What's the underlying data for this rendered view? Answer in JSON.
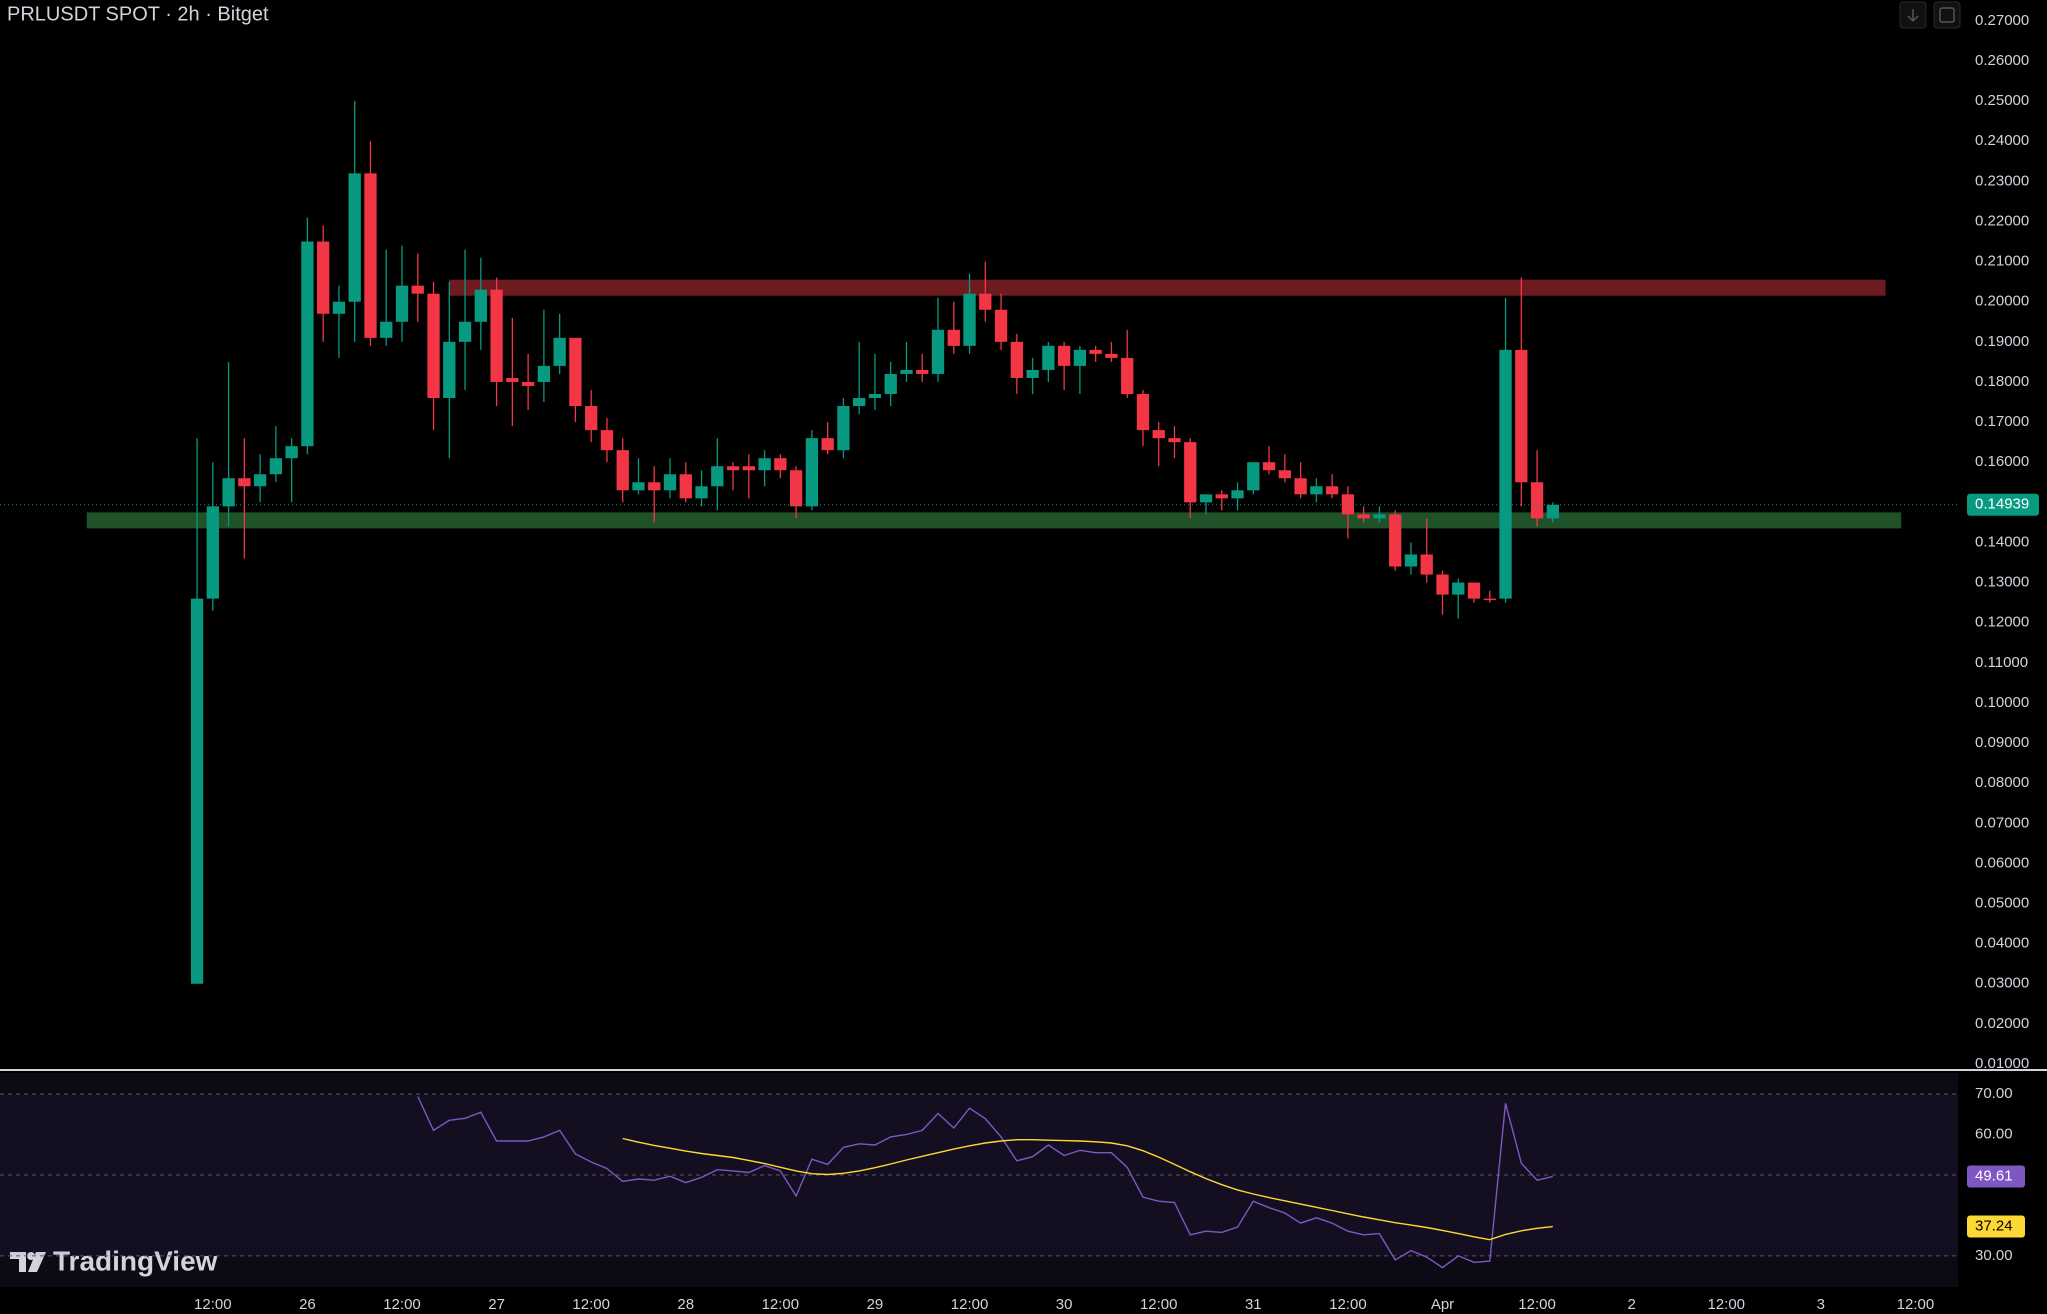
{
  "chart_data": [
    {
      "type": "candlestick",
      "title": "PRLUSDT SPOT · 2h · Bitget",
      "open": [
        0.03,
        0.126,
        0.149,
        0.156,
        0.154,
        0.157,
        0.161,
        0.164,
        0.215,
        0.197,
        0.2,
        0.232,
        0.191,
        0.195,
        0.204,
        0.202,
        0.176,
        0.19,
        0.195,
        0.203,
        0.181,
        0.18,
        0.18,
        0.184,
        0.191,
        0.174,
        0.168,
        0.163,
        0.153,
        0.155,
        0.153,
        0.157,
        0.151,
        0.154,
        0.159,
        0.159,
        0.158,
        0.161,
        0.158,
        0.149,
        0.166,
        0.163,
        0.174,
        0.176,
        0.177,
        0.182,
        0.183,
        0.182,
        0.193,
        0.189,
        0.202,
        0.198,
        0.19,
        0.181,
        0.183,
        0.189,
        0.184,
        0.188,
        0.187,
        0.186,
        0.177,
        0.168,
        0.166,
        0.165,
        0.15,
        0.152,
        0.151,
        0.153,
        0.16,
        0.158,
        0.156,
        0.152,
        0.154,
        0.152,
        0.147,
        0.146,
        0.147,
        0.134,
        0.137,
        0.132,
        0.127,
        0.13,
        0.126,
        0.126,
        0.188,
        0.155,
        0.146
      ],
      "high": [
        0.166,
        0.16,
        0.185,
        0.166,
        0.162,
        0.169,
        0.166,
        0.221,
        0.219,
        0.204,
        0.25,
        0.24,
        0.213,
        0.214,
        0.212,
        0.205,
        0.205,
        0.213,
        0.211,
        0.206,
        0.196,
        0.187,
        0.198,
        0.197,
        0.191,
        0.178,
        0.171,
        0.166,
        0.161,
        0.159,
        0.161,
        0.16,
        0.158,
        0.166,
        0.16,
        0.162,
        0.163,
        0.162,
        0.159,
        0.168,
        0.17,
        0.176,
        0.19,
        0.187,
        0.185,
        0.19,
        0.187,
        0.201,
        0.2,
        0.207,
        0.21,
        0.202,
        0.192,
        0.186,
        0.19,
        0.19,
        0.189,
        0.189,
        0.19,
        0.193,
        0.178,
        0.17,
        0.169,
        0.166,
        0.152,
        0.153,
        0.155,
        0.16,
        0.164,
        0.162,
        0.16,
        0.156,
        0.157,
        0.154,
        0.149,
        0.149,
        0.148,
        0.14,
        0.146,
        0.133,
        0.131,
        0.13,
        0.128,
        0.201,
        0.206,
        0.163,
        0.15
      ],
      "low": [
        0.03,
        0.123,
        0.144,
        0.136,
        0.15,
        0.155,
        0.15,
        0.162,
        0.19,
        0.186,
        0.19,
        0.189,
        0.189,
        0.19,
        0.195,
        0.168,
        0.161,
        0.178,
        0.188,
        0.174,
        0.169,
        0.173,
        0.175,
        0.182,
        0.17,
        0.165,
        0.16,
        0.15,
        0.152,
        0.145,
        0.151,
        0.15,
        0.149,
        0.148,
        0.153,
        0.151,
        0.154,
        0.156,
        0.146,
        0.148,
        0.162,
        0.161,
        0.172,
        0.173,
        0.174,
        0.18,
        0.18,
        0.18,
        0.187,
        0.187,
        0.195,
        0.188,
        0.177,
        0.177,
        0.18,
        0.178,
        0.177,
        0.185,
        0.185,
        0.176,
        0.164,
        0.159,
        0.161,
        0.146,
        0.147,
        0.148,
        0.148,
        0.152,
        0.157,
        0.155,
        0.151,
        0.15,
        0.151,
        0.141,
        0.145,
        0.145,
        0.133,
        0.132,
        0.13,
        0.122,
        0.121,
        0.125,
        0.125,
        0.125,
        0.149,
        0.144,
        0.145
      ],
      "close": [
        0.126,
        0.149,
        0.156,
        0.154,
        0.157,
        0.161,
        0.164,
        0.215,
        0.197,
        0.2,
        0.232,
        0.191,
        0.195,
        0.204,
        0.202,
        0.176,
        0.19,
        0.195,
        0.203,
        0.18,
        0.18,
        0.179,
        0.184,
        0.191,
        0.174,
        0.168,
        0.163,
        0.153,
        0.155,
        0.153,
        0.157,
        0.151,
        0.154,
        0.159,
        0.158,
        0.158,
        0.161,
        0.158,
        0.149,
        0.166,
        0.163,
        0.174,
        0.176,
        0.177,
        0.182,
        0.183,
        0.182,
        0.193,
        0.189,
        0.202,
        0.198,
        0.19,
        0.181,
        0.183,
        0.189,
        0.184,
        0.188,
        0.187,
        0.186,
        0.177,
        0.168,
        0.166,
        0.165,
        0.15,
        0.152,
        0.151,
        0.153,
        0.16,
        0.158,
        0.156,
        0.152,
        0.154,
        0.152,
        0.147,
        0.146,
        0.147,
        0.134,
        0.137,
        0.132,
        0.127,
        0.13,
        0.126,
        0.1258,
        0.188,
        0.155,
        0.146,
        0.14939
      ],
      "up_color": "#089981",
      "down_color": "#f23645",
      "ylim": [
        0.01,
        0.27
      ],
      "yticks": [
        {
          "value": 0.27,
          "label": "0.27000"
        },
        {
          "value": 0.26,
          "label": "0.26000"
        },
        {
          "value": 0.25,
          "label": "0.25000"
        },
        {
          "value": 0.24,
          "label": "0.24000"
        },
        {
          "value": 0.23,
          "label": "0.23000"
        },
        {
          "value": 0.22,
          "label": "0.22000"
        },
        {
          "value": 0.21,
          "label": "0.21000"
        },
        {
          "value": 0.2,
          "label": "0.20000"
        },
        {
          "value": 0.19,
          "label": "0.19000"
        },
        {
          "value": 0.18,
          "label": "0.18000"
        },
        {
          "value": 0.17,
          "label": "0.17000"
        },
        {
          "value": 0.16,
          "label": "0.16000"
        },
        {
          "value": 0.14,
          "label": "0.14000"
        },
        {
          "value": 0.13,
          "label": "0.13000"
        },
        {
          "value": 0.12,
          "label": "0.12000"
        },
        {
          "value": 0.11,
          "label": "0.11000"
        },
        {
          "value": 0.1,
          "label": "0.10000"
        },
        {
          "value": 0.09,
          "label": "0.09000"
        },
        {
          "value": 0.08,
          "label": "0.08000"
        },
        {
          "value": 0.07,
          "label": "0.07000"
        },
        {
          "value": 0.06,
          "label": "0.06000"
        },
        {
          "value": 0.05,
          "label": "0.05000"
        },
        {
          "value": 0.04,
          "label": "0.04000"
        },
        {
          "value": 0.03,
          "label": "0.03000"
        },
        {
          "value": 0.02,
          "label": "0.02000"
        },
        {
          "value": 0.01,
          "label": "0.01000"
        }
      ],
      "xlim": [
        -12.5,
        111.7
      ],
      "xticks": [
        {
          "value": 1,
          "label": "12:00"
        },
        {
          "value": 7,
          "label": "26"
        },
        {
          "value": 13,
          "label": "12:00"
        },
        {
          "value": 19,
          "label": "27"
        },
        {
          "value": 25,
          "label": "12:00"
        },
        {
          "value": 31,
          "label": "28"
        },
        {
          "value": 37,
          "label": "12:00"
        },
        {
          "value": 43,
          "label": "29"
        },
        {
          "value": 49,
          "label": "12:00"
        },
        {
          "value": 55,
          "label": "30"
        },
        {
          "value": 61,
          "label": "12:00"
        },
        {
          "value": 67,
          "label": "31"
        },
        {
          "value": 73,
          "label": "12:00"
        },
        {
          "value": 79,
          "label": "Apr"
        },
        {
          "value": 85,
          "label": "12:00"
        },
        {
          "value": 91,
          "label": "2"
        },
        {
          "value": 97,
          "label": "12:00"
        },
        {
          "value": 103,
          "label": "3"
        },
        {
          "value": 109,
          "label": "12:00"
        }
      ],
      "zones": [
        {
          "color": "#6e1b1f",
          "ylim": [
            0.2015,
            0.2055
          ],
          "xlim": [
            16,
            107.1
          ]
        },
        {
          "color": "#1f5228",
          "ylim": [
            0.1435,
            0.1475
          ],
          "xlim": [
            -7,
            108.1
          ]
        }
      ]
    },
    {
      "type": "line",
      "series": [
        {
          "color": "#7e57c2",
          "values": [
            null,
            null,
            null,
            null,
            null,
            null,
            null,
            null,
            null,
            null,
            null,
            null,
            null,
            null,
            69.4,
            61,
            63.5,
            64,
            65.5,
            58.4,
            58.4,
            58.4,
            59.4,
            61,
            55.2,
            53.2,
            51.6,
            48.4,
            49,
            48.7,
            49.7,
            48.1,
            49.4,
            51.3,
            51,
            50.6,
            52.3,
            51,
            44.8,
            53.9,
            52.6,
            56.8,
            57.7,
            57.4,
            59.4,
            60,
            61,
            65.2,
            61.6,
            66.5,
            63.9,
            59.4,
            53.5,
            54.5,
            57.4,
            54.8,
            56.1,
            55.5,
            55.5,
            51.9,
            44.5,
            43.5,
            43.2,
            35.2,
            36.1,
            35.8,
            37.1,
            43.5,
            41.9,
            40.6,
            38.1,
            39.4,
            38.1,
            36.1,
            35.2,
            35.5,
            29,
            31.3,
            29.7,
            27.1,
            30,
            28.4,
            28.7,
            67.7,
            52.9,
            48.7,
            49.61
          ]
        },
        {
          "color": "#fdd835",
          "values": [
            null,
            null,
            null,
            null,
            null,
            null,
            null,
            null,
            null,
            null,
            null,
            null,
            null,
            null,
            null,
            null,
            null,
            null,
            null,
            null,
            null,
            null,
            null,
            null,
            null,
            null,
            null,
            59.0,
            58.1,
            57.3,
            56.6,
            55.9,
            55.3,
            54.8,
            54.3,
            53.6,
            52.8,
            51.9,
            51.0,
            50.3,
            50.1,
            50.4,
            51.0,
            51.8,
            52.7,
            53.7,
            54.6,
            55.5,
            56.4,
            57.2,
            57.9,
            58.4,
            58.7,
            58.7,
            58.6,
            58.5,
            58.4,
            58.2,
            57.9,
            57.2,
            56.0,
            54.4,
            52.6,
            50.8,
            49.1,
            47.6,
            46.3,
            45.3,
            44.4,
            43.6,
            42.8,
            42.0,
            41.2,
            40.4,
            39.6,
            38.9,
            38.2,
            37.6,
            37.0,
            36.3,
            35.5,
            34.7,
            34.0,
            35.3,
            36.2,
            36.8,
            37.24
          ]
        }
      ],
      "ylim": [
        22.3,
        75.2
      ],
      "yticks": [
        {
          "value": 70,
          "label": "70.00"
        },
        {
          "value": 60,
          "label": "60.00"
        },
        {
          "value": 30,
          "label": "30.00"
        }
      ],
      "levels": [
        70,
        50,
        30
      ]
    }
  ],
  "watermark": "TradingView"
}
